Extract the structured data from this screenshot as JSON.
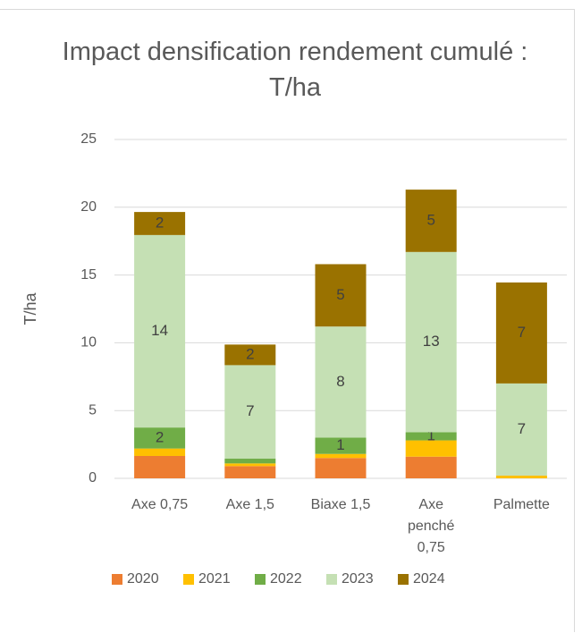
{
  "chart_data": {
    "type": "bar",
    "stacked": true,
    "title": "Impact densification rendement cumulé : T/ha",
    "y_label": "T/ha",
    "categories": [
      "Axe 0,75",
      "Axe 1,5",
      "Biaxe 1,5",
      "Axe penché 0,75",
      "Palmette"
    ],
    "series": [
      {
        "name": "2020",
        "color": "#ed7d31",
        "values": [
          1.65,
          0.9,
          1.5,
          1.6,
          0
        ],
        "value_labels": [
          null,
          null,
          null,
          null,
          null
        ]
      },
      {
        "name": "2021",
        "color": "#ffc000",
        "values": [
          0.55,
          0.2,
          0.3,
          1.2,
          0.2
        ],
        "value_labels": [
          null,
          null,
          null,
          null,
          null
        ]
      },
      {
        "name": "2022",
        "color": "#70ad47",
        "values": [
          1.55,
          0.35,
          1.2,
          0.6,
          0
        ],
        "value_labels": [
          "2",
          null,
          "1",
          "1",
          null
        ]
      },
      {
        "name": "2023",
        "color": "#c5e0b4",
        "values": [
          14.2,
          6.9,
          8.2,
          13.3,
          6.8
        ],
        "value_labels": [
          "14",
          "7",
          "8",
          "13",
          "7"
        ]
      },
      {
        "name": "2024",
        "color": "#9a7200",
        "values": [
          1.7,
          1.52,
          4.6,
          4.6,
          7.45
        ],
        "value_labels": [
          "2",
          "2",
          "5",
          "5",
          "7"
        ]
      }
    ],
    "ylim": [
      0,
      25
    ],
    "yticks": [
      0,
      5,
      10,
      15,
      20,
      25
    ],
    "grid": true,
    "legend": "bottom"
  }
}
